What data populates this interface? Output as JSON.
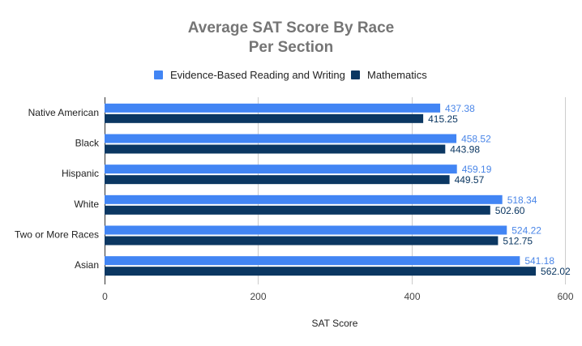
{
  "chart_data": {
    "type": "bar",
    "orientation": "horizontal",
    "title": [
      "Average SAT Score By Race",
      "Per Section"
    ],
    "xlabel": "SAT Score",
    "ylabel": "",
    "xlim": [
      0,
      600
    ],
    "xticks": [
      0,
      200,
      400,
      600
    ],
    "xtick_labels": [
      "0",
      "200",
      "400",
      "600"
    ],
    "grid": true,
    "legend_position": "top",
    "categories": [
      "Native American",
      "Black",
      "Hispanic",
      "White",
      "Two or More Races",
      "Asian"
    ],
    "series": [
      {
        "name": "Evidence-Based Reading and Writing",
        "color": "#4285f4",
        "values": [
          437.38,
          458.52,
          459.19,
          518.34,
          524.22,
          541.18
        ],
        "labels": [
          "437.38",
          "458.52",
          "459.19",
          "518.34",
          "524.22",
          "541.18"
        ]
      },
      {
        "name": "Mathematics",
        "color": "#0b3762",
        "values": [
          415.25,
          443.98,
          449.57,
          502.6,
          512.75,
          562.02
        ],
        "labels": [
          "415.25",
          "443.98",
          "449.57",
          "502.60",
          "512.75",
          "562.02"
        ]
      }
    ]
  }
}
